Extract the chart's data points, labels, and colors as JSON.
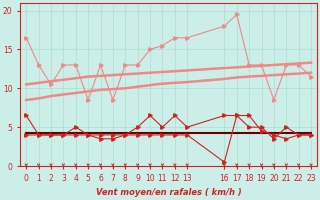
{
  "bg_color": "#cceee8",
  "grid_color": "#aaddcc",
  "xlabel": "Vent moyen/en rafales ( km/h )",
  "xlim": [
    -0.5,
    23.5
  ],
  "ylim": [
    0,
    21
  ],
  "yticks": [
    0,
    5,
    10,
    15,
    20
  ],
  "xticks": [
    0,
    1,
    2,
    3,
    4,
    5,
    6,
    7,
    8,
    9,
    10,
    11,
    12,
    13,
    16,
    17,
    18,
    19,
    20,
    21,
    22,
    23
  ],
  "x": [
    0,
    1,
    2,
    3,
    4,
    5,
    6,
    7,
    8,
    9,
    10,
    11,
    12,
    13,
    16,
    17,
    18,
    19,
    20,
    21,
    22,
    23
  ],
  "line_rafales": [
    16.5,
    13.0,
    10.5,
    13.0,
    13.0,
    8.5,
    13.0,
    8.5,
    13.0,
    13.0,
    15.0,
    15.5,
    16.5,
    16.5,
    18.0,
    19.5,
    13.0,
    13.0,
    8.5,
    13.0,
    13.0,
    11.5
  ],
  "line_trend_high1": [
    10.5,
    10.7,
    10.9,
    11.1,
    11.3,
    11.5,
    11.6,
    11.7,
    11.8,
    11.9,
    12.0,
    12.1,
    12.2,
    12.3,
    12.6,
    12.7,
    12.8,
    12.9,
    13.0,
    13.1,
    13.2,
    13.3
  ],
  "line_trend_high2": [
    8.5,
    8.7,
    9.0,
    9.2,
    9.4,
    9.6,
    9.8,
    9.9,
    10.0,
    10.2,
    10.4,
    10.6,
    10.7,
    10.8,
    11.2,
    11.4,
    11.5,
    11.6,
    11.7,
    11.8,
    11.9,
    12.0
  ],
  "line_vent_moy": [
    6.5,
    4.0,
    4.0,
    4.0,
    5.0,
    4.0,
    3.5,
    3.5,
    4.0,
    5.0,
    6.5,
    5.0,
    6.5,
    5.0,
    6.5,
    6.5,
    5.0,
    5.0,
    3.5,
    5.0,
    4.0,
    4.0
  ],
  "line_trend_low1": [
    4.2,
    4.2,
    4.2,
    4.2,
    4.2,
    4.2,
    4.2,
    4.2,
    4.2,
    4.2,
    4.2,
    4.2,
    4.2,
    4.2,
    4.2,
    4.2,
    4.2,
    4.2,
    4.2,
    4.2,
    4.2,
    4.2
  ],
  "line_vent_raf2": [
    4.0,
    4.0,
    4.0,
    4.0,
    4.0,
    4.0,
    4.0,
    4.0,
    4.0,
    4.0,
    4.0,
    4.0,
    4.0,
    4.0,
    0.5,
    6.5,
    6.5,
    4.5,
    4.0,
    3.5,
    4.0,
    4.0
  ],
  "color_light": "#f08888",
  "color_dark": "#cc2222",
  "color_darkline": "#660000",
  "arrow_color": "#cc2222"
}
